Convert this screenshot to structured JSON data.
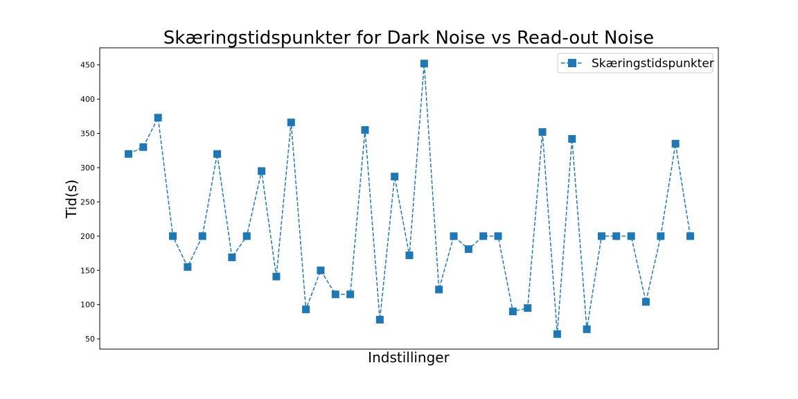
{
  "chart_data": {
    "type": "line",
    "title": "Skæringstidspunkter for Dark Noise vs Read-out Noise",
    "xlabel": "Indstillinger",
    "ylabel": "Tid(s)",
    "ylim": [
      35,
      475
    ],
    "yticks": [
      50,
      100,
      150,
      200,
      250,
      300,
      350,
      400,
      450
    ],
    "xticks": [],
    "grid": false,
    "legend_position": "top-right",
    "line_style": "dashed",
    "marker": "square",
    "color": "#1f77b4",
    "series": [
      {
        "name": "Skæringstidspunkter",
        "values": [
          320,
          330,
          373,
          200,
          155,
          200,
          320,
          169,
          200,
          295,
          141,
          366,
          93,
          150,
          115,
          115,
          355,
          78,
          287,
          172,
          452,
          122,
          200,
          181,
          200,
          200,
          90,
          95,
          352,
          57,
          342,
          64,
          200,
          200,
          200,
          104,
          200,
          335,
          200
        ]
      }
    ]
  }
}
